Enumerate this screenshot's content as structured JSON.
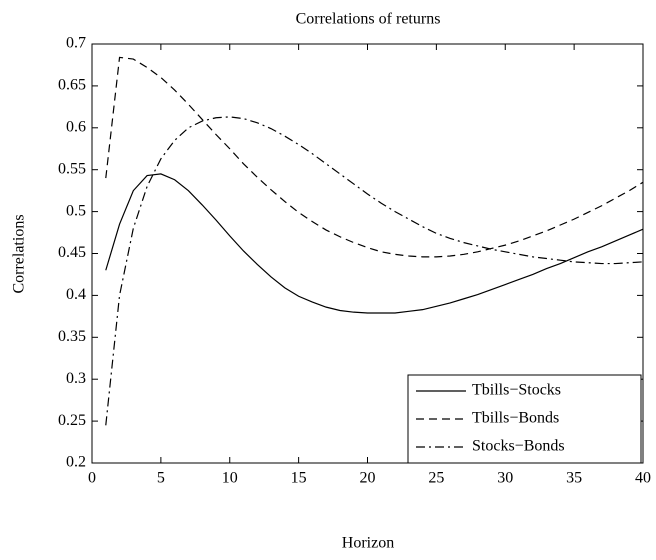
{
  "chart_data": {
    "type": "line",
    "title": "Correlations of returns",
    "xlabel": "Horizon",
    "ylabel": "Correlations",
    "x": [
      1,
      2,
      3,
      4,
      5,
      6,
      7,
      8,
      9,
      10,
      11,
      12,
      13,
      14,
      15,
      16,
      17,
      18,
      19,
      20,
      21,
      22,
      23,
      24,
      25,
      26,
      27,
      28,
      29,
      30,
      31,
      32,
      33,
      34,
      35,
      36,
      37,
      38,
      39,
      40
    ],
    "series": [
      {
        "name": "Tbills−Stocks",
        "color": "#000000",
        "linestyle": "solid",
        "values": [
          0.43,
          0.485,
          0.525,
          0.543,
          0.545,
          0.538,
          0.525,
          0.508,
          0.49,
          0.471,
          0.453,
          0.437,
          0.422,
          0.409,
          0.399,
          0.392,
          0.386,
          0.382,
          0.38,
          0.379,
          0.379,
          0.379,
          0.381,
          0.383,
          0.387,
          0.391,
          0.396,
          0.401,
          0.407,
          0.413,
          0.419,
          0.425,
          0.432,
          0.438,
          0.445,
          0.452,
          0.458,
          0.465,
          0.472,
          0.479
        ]
      },
      {
        "name": "Tbills−Bonds",
        "color": "#000000",
        "linestyle": "dashed",
        "values": [
          0.54,
          0.684,
          0.682,
          0.672,
          0.66,
          0.645,
          0.628,
          0.61,
          0.592,
          0.575,
          0.557,
          0.541,
          0.526,
          0.512,
          0.499,
          0.488,
          0.478,
          0.47,
          0.463,
          0.457,
          0.452,
          0.449,
          0.447,
          0.446,
          0.446,
          0.447,
          0.449,
          0.452,
          0.456,
          0.46,
          0.465,
          0.471,
          0.477,
          0.484,
          0.491,
          0.499,
          0.507,
          0.516,
          0.525,
          0.535
        ]
      },
      {
        "name": "Stocks−Bonds",
        "color": "#000000",
        "linestyle": "dashdot",
        "values": [
          0.245,
          0.4,
          0.48,
          0.53,
          0.563,
          0.585,
          0.6,
          0.608,
          0.612,
          0.613,
          0.611,
          0.606,
          0.599,
          0.59,
          0.58,
          0.569,
          0.557,
          0.545,
          0.533,
          0.521,
          0.51,
          0.5,
          0.491,
          0.482,
          0.474,
          0.468,
          0.463,
          0.459,
          0.455,
          0.452,
          0.449,
          0.446,
          0.444,
          0.442,
          0.44,
          0.439,
          0.438,
          0.438,
          0.439,
          0.44
        ]
      }
    ],
    "xlim": [
      0,
      40
    ],
    "xticks": [
      0,
      5,
      10,
      15,
      20,
      25,
      30,
      35,
      40
    ],
    "ylim": [
      0.2,
      0.7
    ],
    "yticks": [
      0.2,
      0.25,
      0.3,
      0.35,
      0.4,
      0.45,
      0.5,
      0.55,
      0.6,
      0.65,
      0.7
    ],
    "grid": false,
    "legend": "lower right"
  }
}
